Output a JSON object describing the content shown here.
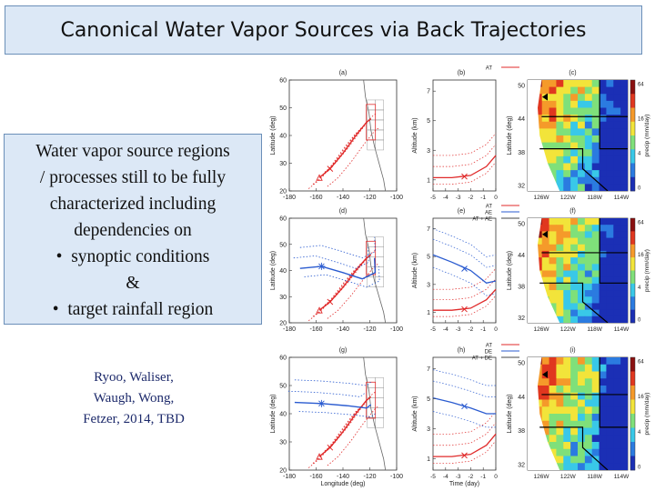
{
  "title": "Canonical Water Vapor Sources via Back Trajectories",
  "description": {
    "lines": [
      "Water vapor source regions",
      "/ processes still to be fully",
      "characterized including",
      "dependencies on"
    ],
    "bullets": [
      "synoptic conditions",
      "&",
      "target rainfall region"
    ]
  },
  "citation": {
    "lines": [
      "Ryoo, Waliser,",
      "Waugh, Wong,",
      "Fetzer, 2014, TBD"
    ]
  },
  "figure": {
    "panel_labels": [
      "(a)",
      "(b)",
      "(c)",
      "(d)",
      "(e)",
      "(f)",
      "(g)",
      "(h)",
      "(i)"
    ],
    "map_yticks": [
      "60",
      "50",
      "40",
      "30",
      "20"
    ],
    "map_xticks": [
      "-180",
      "-160",
      "-140",
      "-120",
      "-100"
    ],
    "map_ylabel": "Latitude (deg)",
    "map_xlabel": "Longitude (deg)",
    "alt_yticks": [
      "7",
      "5",
      "3",
      "1"
    ],
    "alt_xticks": [
      "-5",
      "-4",
      "-3",
      "-2",
      "-1",
      "0"
    ],
    "alt_ylabel": "Altitude (km)",
    "alt_xlabel": "Time (day)",
    "precip_yticks": [
      "50",
      "44",
      "38",
      "32"
    ],
    "precip_xticks": [
      "126W",
      "122W",
      "118W",
      "114W"
    ],
    "precip_ylabel": "Latitude (deg)",
    "colorbar_ticks": [
      "64",
      "16",
      "4",
      "0"
    ],
    "colorbar_label": "precip (mm/day)",
    "legends": [
      {
        "items": [
          "AT"
        ]
      },
      {
        "items": [
          "AT",
          "AE",
          "AT + AE"
        ]
      },
      {
        "items": [
          "AT",
          "DE",
          "AT + DE"
        ]
      }
    ],
    "colors": {
      "red": "#e02a2a",
      "blue": "#2a5bd0",
      "land": "#cc6633"
    }
  }
}
